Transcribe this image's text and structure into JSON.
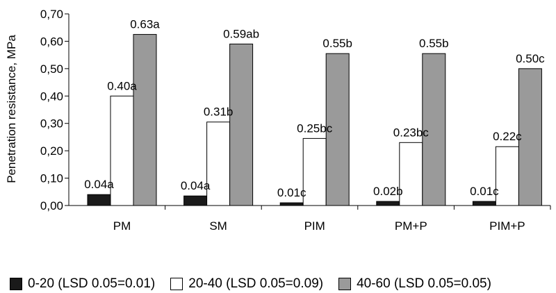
{
  "chart_data": {
    "type": "bar",
    "ylabel": "Penetration resistance, MPa",
    "xlabel": "",
    "ylim": [
      0,
      0.7
    ],
    "ytick_step": 0.1,
    "ytick_labels": [
      "0,00",
      "0,10",
      "0,20",
      "0,30",
      "0,40",
      "0,50",
      "0,60",
      "0,70"
    ],
    "categories": [
      "PM",
      "SM",
      "PIM",
      "PM+P",
      "PIM+P"
    ],
    "grid": false,
    "legend_position": "bottom",
    "series": [
      {
        "name": "0-20 (LSD 0.05=0.01)",
        "color": "#1a1a1a",
        "values": [
          0.04,
          0.035,
          0.01,
          0.015,
          0.015
        ],
        "labels": [
          "0.04a",
          "0.04a",
          "0.01c",
          "0.02b",
          "0.01c"
        ]
      },
      {
        "name": "20-40 (LSD 0.05=0.09)",
        "color": "#ffffff",
        "values": [
          0.4,
          0.305,
          0.245,
          0.23,
          0.215
        ],
        "labels": [
          "0.40a",
          "0.31b",
          "0.25bc",
          "0.23bc",
          "0.22c"
        ]
      },
      {
        "name": "40-60 (LSD 0.05=0.05)",
        "color": "#9a9a9a",
        "values": [
          0.625,
          0.59,
          0.555,
          0.555,
          0.5
        ],
        "labels": [
          "0.63a",
          "0.59ab",
          "0.55b",
          "0.55b",
          "0.50c"
        ]
      }
    ]
  }
}
